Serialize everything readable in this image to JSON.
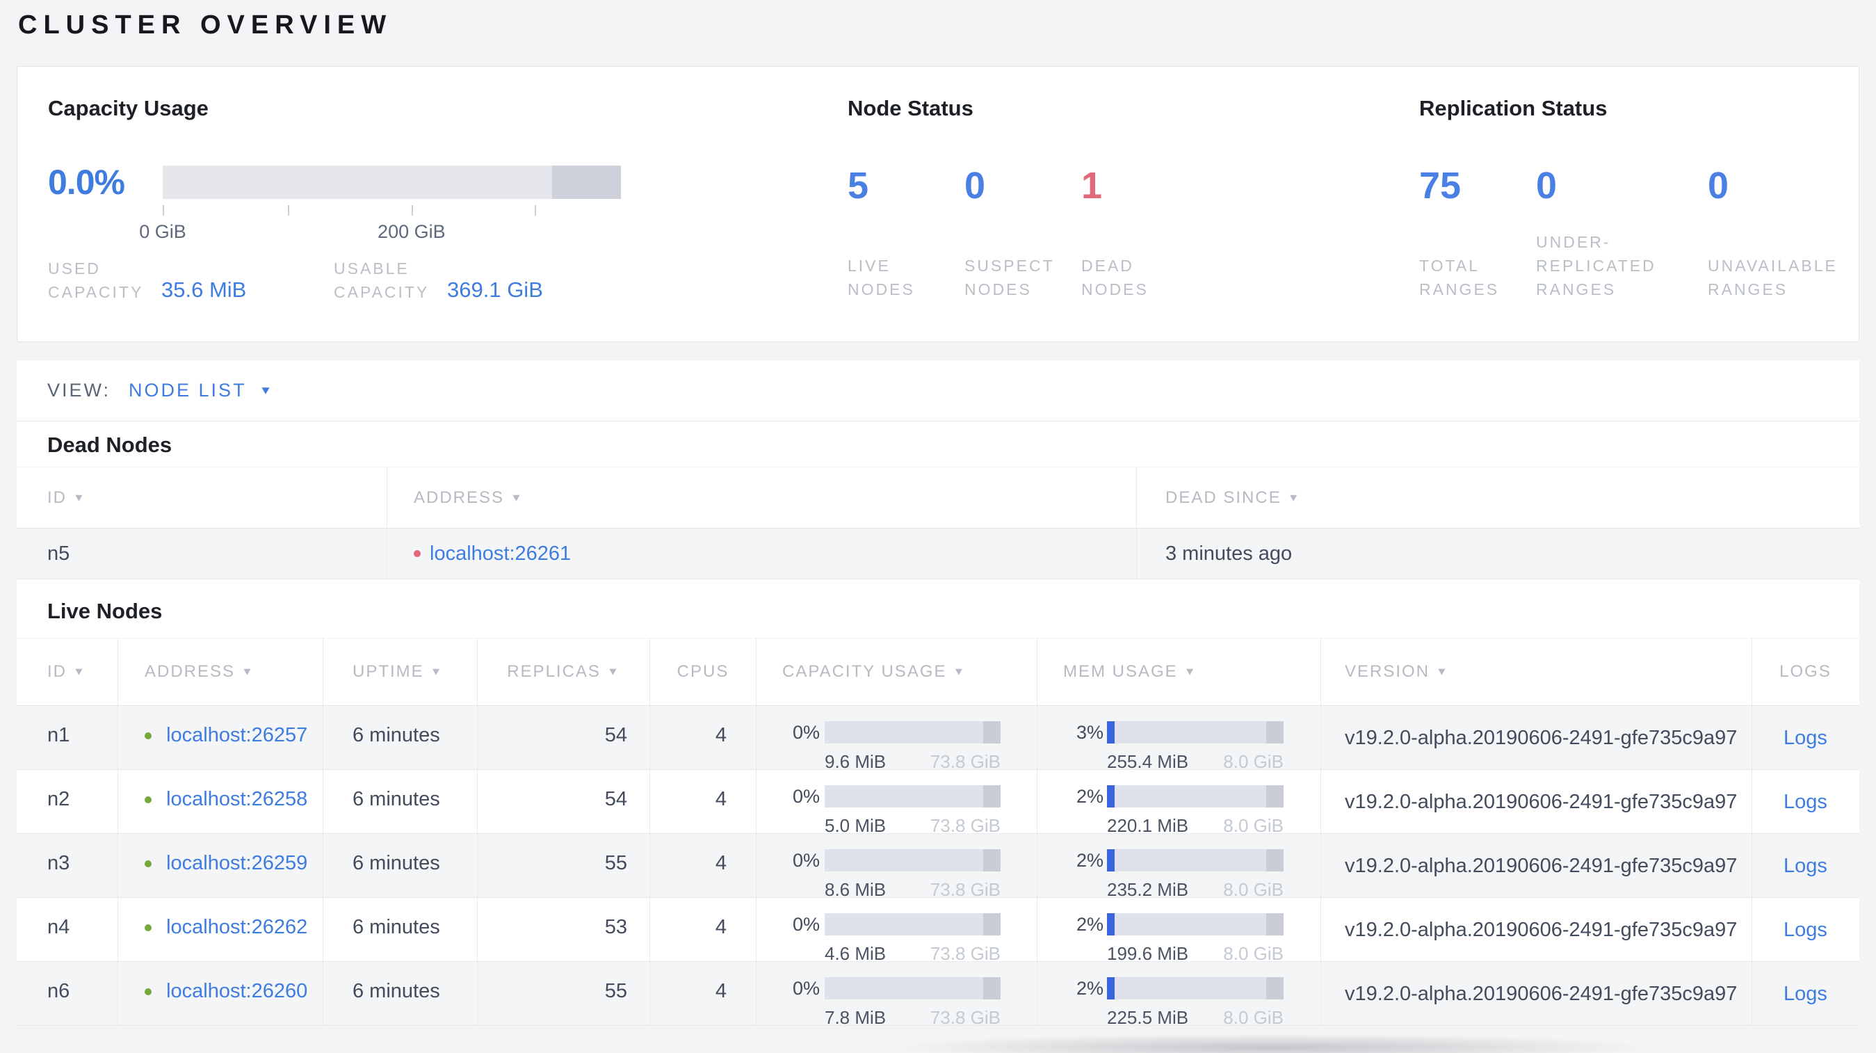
{
  "page": {
    "title": "CLUSTER OVERVIEW"
  },
  "colors": {
    "accent": "#3e7ce0",
    "stat-blue": "#4a80e3",
    "status-red": "#e2697a",
    "dot-green": "#77a63a",
    "dot-red": "#e2697a",
    "bar-fill": "#3a63e0"
  },
  "icons": {
    "sort_caret": "▼",
    "dropdown_caret": "▼"
  },
  "summary": {
    "capacity": {
      "title": "Capacity Usage",
      "percent": "0.0%",
      "used_fill_pct": 0,
      "axis_ticks": [
        {
          "label": "0 GiB",
          "pos_pct": 0
        },
        {
          "label": "200 GiB",
          "pos_pct": 54.3
        }
      ],
      "stats": [
        {
          "label": "USED\nCAPACITY",
          "value": "35.6 MiB"
        },
        {
          "label": "USABLE\nCAPACITY",
          "value": "369.1 GiB"
        }
      ]
    },
    "node_status": {
      "title": "Node Status",
      "stats": [
        {
          "value": "5",
          "label": "LIVE\nNODES",
          "status": "blue"
        },
        {
          "value": "0",
          "label": "SUSPECT\nNODES",
          "status": "blue"
        },
        {
          "value": "1",
          "label": "DEAD\nNODES",
          "status": "red"
        }
      ]
    },
    "replication": {
      "title": "Replication Status",
      "stats": [
        {
          "value": "75",
          "label": "TOTAL\nRANGES"
        },
        {
          "value": "0",
          "label": "UNDER-\nREPLICATED\nRANGES"
        },
        {
          "value": "0",
          "label": "UNAVAILABLE\nRANGES"
        }
      ]
    }
  },
  "view_bar": {
    "label": "VIEW:",
    "selected": "NODE LIST"
  },
  "dead_nodes": {
    "title": "Dead Nodes",
    "columns": [
      {
        "label": "ID",
        "sortable": true
      },
      {
        "label": "ADDRESS",
        "sortable": true
      },
      {
        "label": "DEAD SINCE",
        "sortable": true
      }
    ],
    "rows": [
      {
        "id": "n5",
        "address": "localhost:26261",
        "dead_since": "3 minutes ago"
      }
    ]
  },
  "live_nodes": {
    "title": "Live Nodes",
    "columns": [
      {
        "label": "ID",
        "sortable": true
      },
      {
        "label": "ADDRESS",
        "sortable": true
      },
      {
        "label": "UPTIME",
        "sortable": true
      },
      {
        "label": "REPLICAS",
        "sortable": true
      },
      {
        "label": "CPUS",
        "sortable": false
      },
      {
        "label": "CAPACITY USAGE",
        "sortable": true
      },
      {
        "label": "MEM USAGE",
        "sortable": true
      },
      {
        "label": "VERSION",
        "sortable": true
      },
      {
        "label": "LOGS",
        "sortable": false
      }
    ],
    "rows": [
      {
        "id": "n1",
        "address": "localhost:26257",
        "uptime": "6 minutes",
        "replicas": "54",
        "cpus": "4",
        "capacity": {
          "percent": "0%",
          "fill_pct": 0,
          "used": "9.6 MiB",
          "total": "73.8 GiB"
        },
        "mem": {
          "percent": "3%",
          "fill_pct": 3,
          "used": "255.4 MiB",
          "total": "8.0 GiB"
        },
        "version": "v19.2.0-alpha.20190606-2491-gfe735c9a97",
        "logs_label": "Logs"
      },
      {
        "id": "n2",
        "address": "localhost:26258",
        "uptime": "6 minutes",
        "replicas": "54",
        "cpus": "4",
        "capacity": {
          "percent": "0%",
          "fill_pct": 0,
          "used": "5.0 MiB",
          "total": "73.8 GiB"
        },
        "mem": {
          "percent": "2%",
          "fill_pct": 2,
          "used": "220.1 MiB",
          "total": "8.0 GiB"
        },
        "version": "v19.2.0-alpha.20190606-2491-gfe735c9a97",
        "logs_label": "Logs"
      },
      {
        "id": "n3",
        "address": "localhost:26259",
        "uptime": "6 minutes",
        "replicas": "55",
        "cpus": "4",
        "capacity": {
          "percent": "0%",
          "fill_pct": 0,
          "used": "8.6 MiB",
          "total": "73.8 GiB"
        },
        "mem": {
          "percent": "2%",
          "fill_pct": 2,
          "used": "235.2 MiB",
          "total": "8.0 GiB"
        },
        "version": "v19.2.0-alpha.20190606-2491-gfe735c9a97",
        "logs_label": "Logs"
      },
      {
        "id": "n4",
        "address": "localhost:26262",
        "uptime": "6 minutes",
        "replicas": "53",
        "cpus": "4",
        "capacity": {
          "percent": "0%",
          "fill_pct": 0,
          "used": "4.6 MiB",
          "total": "73.8 GiB"
        },
        "mem": {
          "percent": "2%",
          "fill_pct": 2,
          "used": "199.6 MiB",
          "total": "8.0 GiB"
        },
        "version": "v19.2.0-alpha.20190606-2491-gfe735c9a97",
        "logs_label": "Logs"
      },
      {
        "id": "n6",
        "address": "localhost:26260",
        "uptime": "6 minutes",
        "replicas": "55",
        "cpus": "4",
        "capacity": {
          "percent": "0%",
          "fill_pct": 0,
          "used": "7.8 MiB",
          "total": "73.8 GiB"
        },
        "mem": {
          "percent": "2%",
          "fill_pct": 2,
          "used": "225.5 MiB",
          "total": "8.0 GiB"
        },
        "version": "v19.2.0-alpha.20190606-2491-gfe735c9a97",
        "logs_label": "Logs"
      }
    ]
  }
}
